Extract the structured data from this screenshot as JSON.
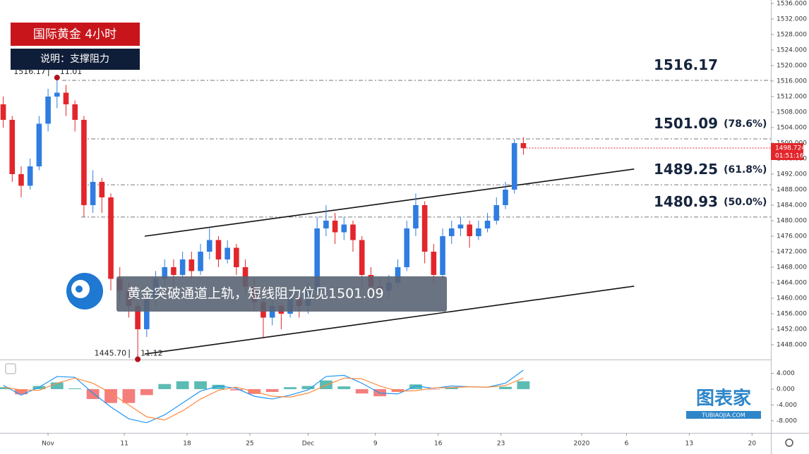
{
  "chart_data": {
    "type": "candlestick",
    "title": "国际黄金 4小时",
    "subtitle": "说明：支撑阻力",
    "annotation": "黄金突破通道上轨，短线阻力位见1501.09",
    "up_color": "#2f7de1",
    "down_color": "#e2262b",
    "x": [
      -3.5,
      -2.5,
      -1.5,
      -0.5,
      0.5,
      1.5,
      2.5,
      3.5,
      4.5,
      5.5,
      6.5,
      7.5,
      8.5,
      9.5,
      10.5,
      11.5,
      12.5,
      13.5,
      14.5,
      15.5,
      16.5,
      17.5,
      18.5,
      19.5,
      20.5,
      21.5,
      22.5,
      23.5,
      24.5,
      25.5,
      26.5,
      27.5,
      28.5,
      29.5,
      30.5,
      31.5,
      32.5,
      33.5,
      34.5,
      35.5,
      36.5,
      37.5,
      38.5,
      39.5,
      40.5,
      41.5,
      42.5,
      43.5,
      44.5,
      45.5,
      46.5,
      47.5,
      48.5,
      49.5,
      50.5,
      51.5,
      52.5,
      53.5,
      54.5
    ],
    "open": [
      1510,
      1506,
      1492,
      1489,
      1494,
      1505,
      1512,
      1513,
      1510,
      1506,
      1484,
      1490,
      1486,
      1465,
      1462,
      1458,
      1452,
      1460,
      1465,
      1468,
      1466,
      1470,
      1467,
      1472,
      1475,
      1470,
      1473,
      1468,
      1463,
      1459,
      1455,
      1458,
      1456,
      1460,
      1458,
      1462,
      1478,
      1480,
      1477,
      1479,
      1475,
      1466,
      1463,
      1462,
      1464,
      1468,
      1478,
      1484,
      1472,
      1466,
      1476,
      1478,
      1479,
      1476,
      1478,
      1480,
      1484,
      1488,
      1500
    ],
    "high": [
      1512,
      1507,
      1494,
      1496,
      1507,
      1514,
      1516.17,
      1515,
      1511,
      1507,
      1493,
      1491,
      1487,
      1468,
      1464,
      1460,
      1462,
      1467,
      1470,
      1470,
      1472,
      1472,
      1474,
      1478,
      1476,
      1475,
      1474,
      1470,
      1465,
      1461,
      1460,
      1459,
      1462,
      1461,
      1464,
      1481,
      1484,
      1482,
      1481,
      1480,
      1476,
      1468,
      1465,
      1466,
      1470,
      1480,
      1487,
      1485,
      1474,
      1478,
      1480,
      1481,
      1480,
      1480,
      1482,
      1486,
      1490,
      1501,
      1501.5
    ],
    "low": [
      1504,
      1490,
      1486,
      1488,
      1493,
      1503,
      1509,
      1507,
      1503,
      1481,
      1482,
      1482,
      1462,
      1459,
      1455,
      1445.7,
      1450,
      1458,
      1463,
      1463,
      1465,
      1465,
      1466,
      1470,
      1468,
      1469,
      1466,
      1461,
      1457,
      1450,
      1453,
      1452,
      1455,
      1455,
      1456,
      1461,
      1476,
      1474,
      1475,
      1472,
      1463,
      1460,
      1459,
      1460,
      1463,
      1467,
      1476,
      1469,
      1464,
      1465,
      1474,
      1476,
      1473,
      1475,
      1477,
      1479,
      1483,
      1487,
      1497
    ],
    "close": [
      1506,
      1492,
      1489,
      1494,
      1505,
      1512,
      1513,
      1510,
      1506,
      1484,
      1490,
      1486,
      1465,
      1462,
      1458,
      1452,
      1460,
      1465,
      1468,
      1466,
      1470,
      1467,
      1472,
      1475,
      1470,
      1473,
      1468,
      1463,
      1459,
      1455,
      1458,
      1456,
      1460,
      1458,
      1462,
      1478,
      1480,
      1477,
      1479,
      1475,
      1466,
      1463,
      1462,
      1464,
      1468,
      1478,
      1484,
      1472,
      1466,
      1476,
      1478,
      1479,
      1476,
      1478,
      1480,
      1484,
      1488,
      1500,
      1498.7
    ],
    "xlim": [
      -3.86,
      82.1
    ],
    "xticks": [
      {
        "value": 1.5,
        "label": "Nov"
      },
      {
        "value": 10,
        "label": "11"
      },
      {
        "value": 17,
        "label": "18"
      },
      {
        "value": 24,
        "label": "25"
      },
      {
        "value": 30.5,
        "label": "Dec"
      },
      {
        "value": 38,
        "label": "9"
      },
      {
        "value": 45,
        "label": "16"
      },
      {
        "value": 52,
        "label": "23"
      },
      {
        "value": 61,
        "label": "2020"
      },
      {
        "value": 66,
        "label": "6"
      },
      {
        "value": 73,
        "label": "13"
      },
      {
        "value": 80,
        "label": "20"
      }
    ],
    "ylim": [
      1444.55,
      1536.9
    ],
    "yticks": [
      {
        "value": 1448,
        "label": "1448.000"
      },
      {
        "value": 1452,
        "label": "1452.000"
      },
      {
        "value": 1456,
        "label": "1456.000"
      },
      {
        "value": 1460,
        "label": "1460.000"
      },
      {
        "value": 1464,
        "label": "1464.000"
      },
      {
        "value": 1468,
        "label": "1468.000"
      },
      {
        "value": 1472,
        "label": "1472.000"
      },
      {
        "value": 1476,
        "label": "1476.000"
      },
      {
        "value": 1480,
        "label": "1480.000"
      },
      {
        "value": 1484,
        "label": "1484.000"
      },
      {
        "value": 1488,
        "label": "1488.000"
      },
      {
        "value": 1492,
        "label": "1492.000"
      },
      {
        "value": 1496,
        "label": "1496.000"
      },
      {
        "value": 1500,
        "label": "1500.000"
      },
      {
        "value": 1504,
        "label": "1504.000"
      },
      {
        "value": 1508,
        "label": "1508.000"
      },
      {
        "value": 1512,
        "label": "1512.000"
      },
      {
        "value": 1516,
        "label": "1516.000"
      },
      {
        "value": 1520,
        "label": "1520.000"
      },
      {
        "value": 1524,
        "label": "1524.000"
      },
      {
        "value": 1528,
        "label": "1528.000"
      },
      {
        "value": 1532,
        "label": "1532.000"
      },
      {
        "value": 1536,
        "label": "1536.000"
      }
    ],
    "levels": [
      {
        "value": 1516.17
      },
      {
        "value": 1501.09,
        "ratio": "(78.6%)"
      },
      {
        "value": 1489.25,
        "ratio": "(61.8%)"
      },
      {
        "value": 1480.93,
        "ratio": "(50.0%)"
      }
    ],
    "extremes": [
      {
        "value": 1516.17,
        "date": "11.01"
      },
      {
        "value": 1445.7,
        "label": "1445.70",
        "date": "11.12"
      }
    ],
    "last_price": {
      "value": 1498.724,
      "countdown": "01:51:16"
    },
    "channels": [
      {
        "x": [
          12.28,
          66.85
        ],
        "y": [
          1476,
          1493.3
        ]
      },
      {
        "x": [
          12.28,
          66.85
        ],
        "y": [
          1445.6,
          1463.1
        ]
      }
    ],
    "macd": {
      "ylim": [
        -10.7,
        6.96
      ],
      "yticks": [
        {
          "value": 4,
          "label": "4.000"
        },
        {
          "value": 0,
          "label": "0.000"
        },
        {
          "value": -4,
          "label": "-4.000"
        },
        {
          "value": -8,
          "label": "-8.000"
        }
      ],
      "x": [
        -3.5,
        -1.5,
        0.5,
        2.5,
        4.5,
        6.5,
        8.5,
        10.5,
        12.5,
        14.5,
        16.5,
        18.5,
        20.5,
        22.5,
        24.5,
        26.5,
        28.5,
        30.5,
        32.5,
        34.5,
        36.5,
        38.5,
        40.5,
        42.5,
        44.5,
        46.5,
        48.5,
        50.5,
        52.5,
        54.5
      ],
      "line": [
        1.0,
        -1.5,
        0.5,
        3.2,
        3.0,
        -1.0,
        -4.5,
        -7.5,
        -8.5,
        -6.5,
        -3.5,
        -0.5,
        0.8,
        0.2,
        -1.8,
        -2.5,
        -1.5,
        -0.2,
        3.2,
        3.5,
        1.5,
        -1.0,
        -1.2,
        0.8,
        0.2,
        0.8,
        0.6,
        0.5,
        1.5,
        4.8
      ],
      "signal": [
        0.5,
        -0.2,
        -0.3,
        1.5,
        2.8,
        1.5,
        -1.0,
        -4.0,
        -7.0,
        -7.8,
        -5.5,
        -2.5,
        -0.3,
        0.5,
        -0.6,
        -1.8,
        -2.0,
        -1.0,
        1.0,
        2.8,
        2.6,
        0.8,
        -0.5,
        -0.4,
        0.3,
        0.4,
        0.6,
        0.5,
        0.9,
        2.8
      ],
      "histogram": [
        0.5,
        -1.3,
        0.8,
        1.7,
        0.2,
        -2.5,
        -3.5,
        -3.5,
        -1.5,
        1.3,
        2.0,
        2.0,
        1.1,
        -0.3,
        -1.2,
        -0.7,
        0.5,
        0.8,
        2.2,
        0.7,
        -1.1,
        -1.8,
        -0.7,
        1.2,
        -0.1,
        0.4,
        0.0,
        0.0,
        0.6,
        2.0
      ],
      "line_color": "#2196f3",
      "signal_color": "#ff8a3d",
      "pos_color": "#26a69a",
      "neg_color": "#ef5350"
    }
  },
  "watermark": {
    "name": "图表家",
    "url": "TUBIAOJIA.COM"
  }
}
